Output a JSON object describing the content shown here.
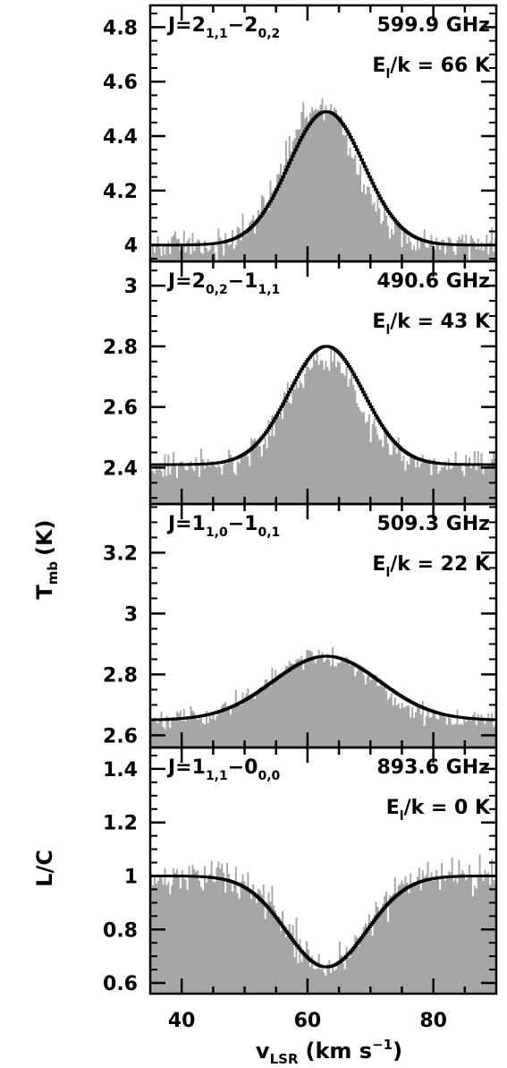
{
  "figure": {
    "ylabel_top": "T",
    "ylabel_top_sub": "mb",
    "ylabel_top_unit": "(K)",
    "ylabel_bottom": "L/C",
    "xlabel": "v",
    "xlabel_sub": "LSR",
    "xlabel_unit": "(km s",
    "xlabel_unit_sup": "−1",
    "xlabel_unit_close": ")",
    "xlim": [
      35,
      90
    ],
    "xticks": [
      40,
      60,
      80
    ],
    "data_color": "#a6a6a6",
    "fit_color": "#000000"
  },
  "chart_data": [
    {
      "type": "area",
      "transition": {
        "prefix": "J=2",
        "sub1": "1,1",
        "mid": "−2",
        "sub2": "0,2"
      },
      "frequency": "599.9 GHz",
      "energy": {
        "pre": "E",
        "sub": "l",
        "post": "/k = 66 K"
      },
      "ylim": [
        3.94,
        4.88
      ],
      "yticks": [
        "4",
        "4.2",
        "4.4",
        "4.6",
        "4.8"
      ],
      "continuum": 4.0,
      "fit": {
        "center": 63,
        "fwhm": 14,
        "peak": 4.49
      },
      "observed": {
        "center": 62,
        "fwhm": 13,
        "peak": 4.52,
        "noise": 0.05
      }
    },
    {
      "type": "area",
      "transition": {
        "prefix": "J=2",
        "sub1": "0,2",
        "mid": "−1",
        "sub2": "1,1"
      },
      "frequency": "490.6 GHz",
      "energy": {
        "pre": "E",
        "sub": "l",
        "post": "/k = 43 K"
      },
      "ylim": [
        2.28,
        3.08
      ],
      "yticks": [
        "2.4",
        "2.6",
        "2.8",
        "3"
      ],
      "continuum": 2.41,
      "fit": {
        "center": 63,
        "fwhm": 14,
        "peak": 2.8
      },
      "observed": {
        "center": 62.5,
        "fwhm": 13,
        "peak": 2.76,
        "noise": 0.04
      }
    },
    {
      "type": "area",
      "transition": {
        "prefix": "J=1",
        "sub1": "1,0",
        "mid": "−1",
        "sub2": "0,1"
      },
      "frequency": "509.3 GHz",
      "energy": {
        "pre": "E",
        "sub": "l",
        "post": "/k = 22 K"
      },
      "ylim": [
        2.56,
        3.36
      ],
      "yticks": [
        "2.6",
        "2.8",
        "3",
        "3.2"
      ],
      "continuum": 2.65,
      "fit": {
        "center": 63,
        "fwhm": 20,
        "peak": 2.86
      },
      "observed": {
        "center": 62,
        "fwhm": 19,
        "peak": 2.86,
        "noise": 0.03
      }
    },
    {
      "type": "area",
      "transition": {
        "prefix": "J=1",
        "sub1": "1,1",
        "mid": "−0",
        "sub2": "0,0"
      },
      "frequency": "893.6 GHz",
      "energy": {
        "pre": "E",
        "sub": "l",
        "post": "/k = 0 K"
      },
      "ylim": [
        0.56,
        1.48
      ],
      "yticks": [
        "0.6",
        "0.8",
        "1",
        "1.2",
        "1.4"
      ],
      "continuum": 1.0,
      "fit": {
        "center": 63,
        "fwhm": 15,
        "peak": 0.66
      },
      "observed": {
        "center": 63,
        "fwhm": 14,
        "peak": 0.66,
        "noise": 0.06
      }
    }
  ]
}
